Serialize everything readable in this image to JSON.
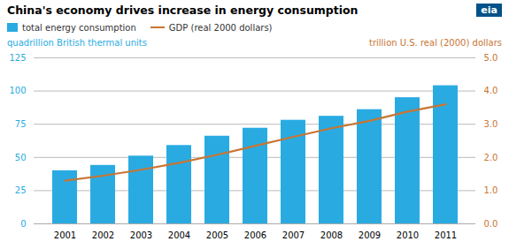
{
  "chart_data": {
    "type": "bar",
    "title": "China's economy drives increase in energy consumption",
    "ylabel": "quadrillion British thermal units",
    "y2label": "trillion U.S. real (2000)  dollars",
    "annotations": [
      {
        "text": "eia",
        "color": "#005288"
      }
    ],
    "categories": [
      "2001",
      "2002",
      "2003",
      "2004",
      "2005",
      "2006",
      "2007",
      "2008",
      "2009",
      "2010",
      "2011"
    ],
    "series": [
      {
        "name": "total energy consumption",
        "type": "bar",
        "color": "#29ABE2",
        "values": [
          40,
          44,
          51,
          59,
          66,
          72,
          78,
          81,
          86,
          95,
          104
        ]
      },
      {
        "name": "GDP (real 2000 dollars)",
        "type": "line",
        "axis": "y2",
        "color": "#C87533",
        "values": [
          1.3,
          1.45,
          1.63,
          1.84,
          2.08,
          2.35,
          2.62,
          2.88,
          3.1,
          3.38,
          3.6
        ]
      }
    ],
    "ylim": [
      0,
      125
    ],
    "yticks": [
      0,
      25,
      50,
      75,
      100,
      125
    ],
    "y2lim": [
      0,
      5
    ],
    "y2ticks": [
      0,
      1,
      2,
      3,
      4,
      5
    ],
    "grid": true,
    "legend": "upper left"
  }
}
